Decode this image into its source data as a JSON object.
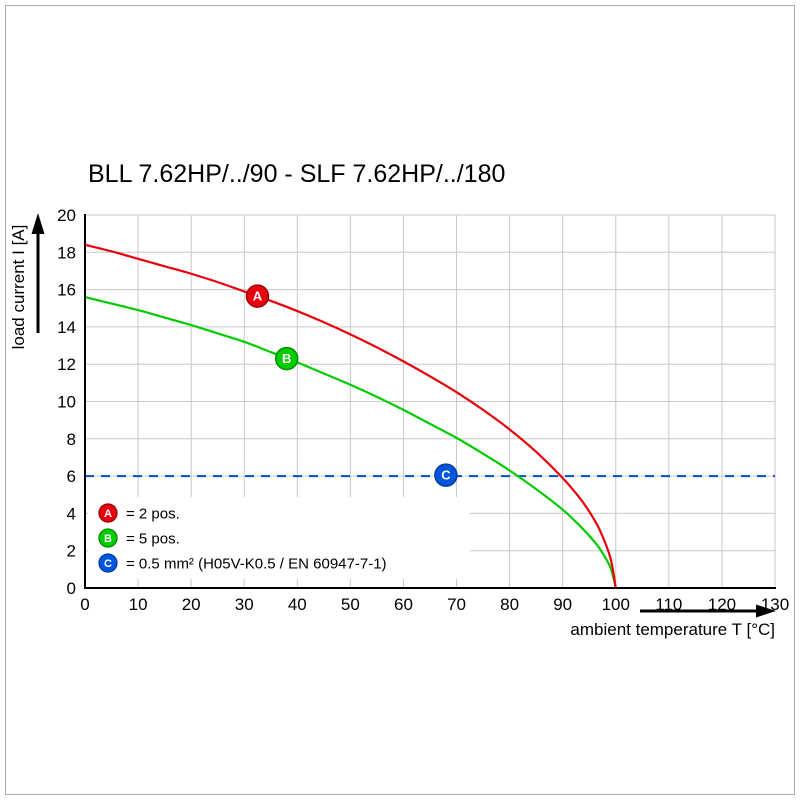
{
  "page": {
    "background": "#ffffff",
    "frame_color": "#ababab"
  },
  "chart_data": {
    "type": "line",
    "title": "BLL 7.62HP/../90 - SLF 7.62HP/../180",
    "xlabel": "ambient temperature T [°C]",
    "ylabel": "load current I [A]",
    "xlim": [
      0,
      130
    ],
    "ylim": [
      0,
      20
    ],
    "x_ticks": [
      0,
      10,
      20,
      30,
      40,
      50,
      60,
      70,
      80,
      90,
      100,
      110,
      120,
      130
    ],
    "y_ticks": [
      0,
      2,
      4,
      6,
      8,
      10,
      12,
      14,
      16,
      18,
      20
    ],
    "grid": true,
    "grid_color": "#c8c8c8",
    "axis_color": "#000000",
    "series": [
      {
        "name": "A",
        "label": "2 pos.",
        "color": "#e8000d",
        "ring": "#9b000a",
        "points": [
          [
            0,
            18.4
          ],
          [
            5,
            18.05
          ],
          [
            10,
            17.65
          ],
          [
            15,
            17.25
          ],
          [
            20,
            16.85
          ],
          [
            25,
            16.4
          ],
          [
            30,
            15.9
          ],
          [
            35,
            15.4
          ],
          [
            40,
            14.85
          ],
          [
            45,
            14.25
          ],
          [
            50,
            13.6
          ],
          [
            55,
            12.9
          ],
          [
            60,
            12.15
          ],
          [
            65,
            11.35
          ],
          [
            70,
            10.5
          ],
          [
            75,
            9.55
          ],
          [
            80,
            8.5
          ],
          [
            85,
            7.3
          ],
          [
            90,
            5.9
          ],
          [
            93,
            4.9
          ],
          [
            95,
            4.1
          ],
          [
            97,
            3.1
          ],
          [
            99,
            1.6
          ],
          [
            100,
            0
          ]
        ]
      },
      {
        "name": "B",
        "label": "5 pos.",
        "color": "#00cc00",
        "ring": "#008f00",
        "points": [
          [
            0,
            15.6
          ],
          [
            5,
            15.25
          ],
          [
            10,
            14.9
          ],
          [
            15,
            14.5
          ],
          [
            20,
            14.1
          ],
          [
            25,
            13.65
          ],
          [
            30,
            13.2
          ],
          [
            35,
            12.65
          ],
          [
            40,
            12.1
          ],
          [
            45,
            11.5
          ],
          [
            50,
            10.9
          ],
          [
            55,
            10.25
          ],
          [
            60,
            9.55
          ],
          [
            65,
            8.8
          ],
          [
            70,
            8.05
          ],
          [
            75,
            7.2
          ],
          [
            80,
            6.3
          ],
          [
            85,
            5.3
          ],
          [
            90,
            4.2
          ],
          [
            93,
            3.4
          ],
          [
            95,
            2.8
          ],
          [
            97,
            2.1
          ],
          [
            99,
            1.1
          ],
          [
            100,
            0
          ]
        ]
      }
    ],
    "reference_line": {
      "name": "C",
      "y": 6,
      "style": "dashed",
      "color": "#0050c8",
      "label": "0.5 mm² (H05V-K0.5 / EN 60947-7-1)"
    },
    "markers": [
      {
        "label": "A",
        "x": 32.5,
        "y": 15.65,
        "color": "#e8000d",
        "ring": "#9b000a"
      },
      {
        "label": "B",
        "x": 38,
        "y": 12.3,
        "color": "#00cc00",
        "ring": "#008f00"
      },
      {
        "label": "C",
        "x": 68,
        "y": 6.05,
        "color": "#0055dd",
        "ring": "#003f9e"
      }
    ],
    "legend": [
      {
        "label": "A",
        "color": "#e8000d",
        "ring": "#9b000a",
        "text": "= 2 pos."
      },
      {
        "label": "B",
        "color": "#00cc00",
        "ring": "#008f00",
        "text": "= 5 pos."
      },
      {
        "label": "C",
        "color": "#0055dd",
        "ring": "#003f9e",
        "text": "= 0.5 mm² (H05V-K0.5 / EN 60947-7-1)"
      }
    ],
    "legend_position": "bottom-left"
  }
}
